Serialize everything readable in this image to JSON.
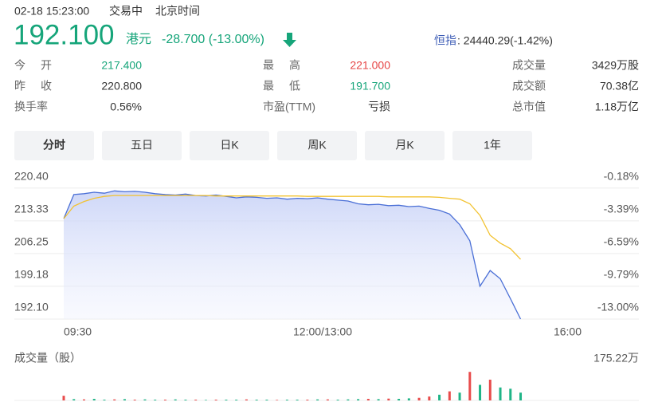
{
  "header": {
    "datetime": "02-18 15:23:00",
    "status": "交易中",
    "timezone": "北京时间",
    "price": "192.100",
    "currency": "港元",
    "change": "-28.700 (-13.00%)",
    "index_name": "恒指",
    "index_value": ": 24440.29(-1.42%)"
  },
  "stats": [
    [
      {
        "label": "今开",
        "value": "217.400"
      },
      {
        "label": "最高",
        "value": "221.000"
      },
      {
        "label": "成交量",
        "value": "3429万股"
      }
    ],
    [
      {
        "label": "昨收",
        "value": "220.800"
      },
      {
        "label": "最低",
        "value": "191.700"
      },
      {
        "label": "成交额",
        "value": "70.38亿"
      }
    ],
    [
      {
        "label": "换手率",
        "value": "0.56%"
      },
      {
        "label": "市盈(TTM)",
        "value": "亏损"
      },
      {
        "label": "总市值",
        "value": "1.18万亿"
      }
    ]
  ],
  "tabs": [
    "分时",
    "五日",
    "日K",
    "周K",
    "月K",
    "1年"
  ],
  "chart_data": [
    {
      "type": "line",
      "x_labels": [
        "09:30",
        "12:00/13:00",
        "16:00"
      ],
      "ylim": [
        192.1,
        224.5
      ],
      "yticks": [
        {
          "value": 220.4,
          "label": "220.40"
        },
        {
          "value": 213.33,
          "label": "213.33"
        },
        {
          "value": 206.25,
          "label": "206.25"
        },
        {
          "value": 199.18,
          "label": "199.18"
        },
        {
          "value": 192.1,
          "label": "192.10"
        }
      ],
      "y2lim": [
        -13.0,
        1.68
      ],
      "y2ticks": [
        {
          "value": -0.18,
          "label": "-0.18%"
        },
        {
          "value": -3.39,
          "label": "-3.39%"
        },
        {
          "value": -6.59,
          "label": "-6.59%"
        },
        {
          "value": -9.79,
          "label": "-9.79%"
        },
        {
          "value": -13.0,
          "label": "-13.00%"
        }
      ],
      "series": [
        {
          "color": "#4a6fd6",
          "values": [
            213.8,
            219.0,
            219.2,
            219.5,
            219.3,
            219.8,
            219.6,
            219.7,
            219.5,
            219.2,
            219.0,
            218.9,
            219.1,
            218.8,
            218.7,
            218.9,
            218.6,
            218.3,
            218.5,
            218.4,
            218.2,
            218.3,
            218.0,
            218.2,
            218.1,
            218.3,
            218.0,
            217.8,
            217.6,
            217.0,
            216.8,
            216.9,
            216.6,
            216.7,
            216.4,
            216.5,
            216.0,
            215.6,
            214.8,
            212.5,
            209.0,
            199.2,
            202.6,
            200.8,
            196.5,
            192.1
          ]
        },
        {
          "color": "#f2c230",
          "values": [
            213.8,
            216.5,
            217.5,
            218.2,
            218.6,
            218.8,
            218.8,
            218.8,
            218.8,
            218.8,
            218.8,
            218.8,
            218.8,
            218.8,
            218.8,
            218.7,
            218.7,
            218.7,
            218.7,
            218.7,
            218.7,
            218.7,
            218.7,
            218.7,
            218.6,
            218.6,
            218.6,
            218.6,
            218.6,
            218.6,
            218.6,
            218.6,
            218.5,
            218.5,
            218.5,
            218.5,
            218.5,
            218.4,
            218.2,
            218.0,
            217.0,
            214.5,
            210.2,
            208.5,
            207.3,
            205.0
          ]
        }
      ]
    },
    {
      "type": "bar",
      "title": "成交量（股）",
      "ylim": [
        0,
        175.22
      ],
      "yticks": [
        {
          "value": 175.22,
          "label": "175.22万"
        }
      ],
      "values": [
        18,
        5,
        4,
        6,
        3,
        4,
        5,
        3,
        4,
        3,
        3,
        4,
        3,
        3,
        2,
        3,
        3,
        3,
        4,
        3,
        3,
        2,
        3,
        3,
        3,
        4,
        4,
        3,
        4,
        5,
        6,
        5,
        7,
        6,
        8,
        10,
        15,
        22,
        35,
        30,
        110,
        60,
        80,
        50,
        45,
        30
      ],
      "colors": [
        "#e84b4b",
        "#1fb487",
        "#e84b4b",
        "#1fb487",
        "#1fb487",
        "#e84b4b",
        "#1fb487",
        "#e84b4b",
        "#1fb487",
        "#1fb487",
        "#e84b4b",
        "#1fb487",
        "#1fb487",
        "#e84b4b",
        "#1fb487",
        "#e84b4b",
        "#1fb487",
        "#1fb487",
        "#e84b4b",
        "#1fb487",
        "#1fb487",
        "#e84b4b",
        "#1fb487",
        "#1fb487",
        "#e84b4b",
        "#1fb487",
        "#e84b4b",
        "#1fb487",
        "#1fb487",
        "#1fb487",
        "#e84b4b",
        "#1fb487",
        "#e84b4b",
        "#1fb487",
        "#1fb487",
        "#e84b4b",
        "#e84b4b",
        "#1fb487",
        "#e84b4b",
        "#1fb487",
        "#e84b4b",
        "#1fb487",
        "#e84b4b",
        "#1fb487",
        "#1fb487",
        "#1fb487"
      ]
    }
  ]
}
